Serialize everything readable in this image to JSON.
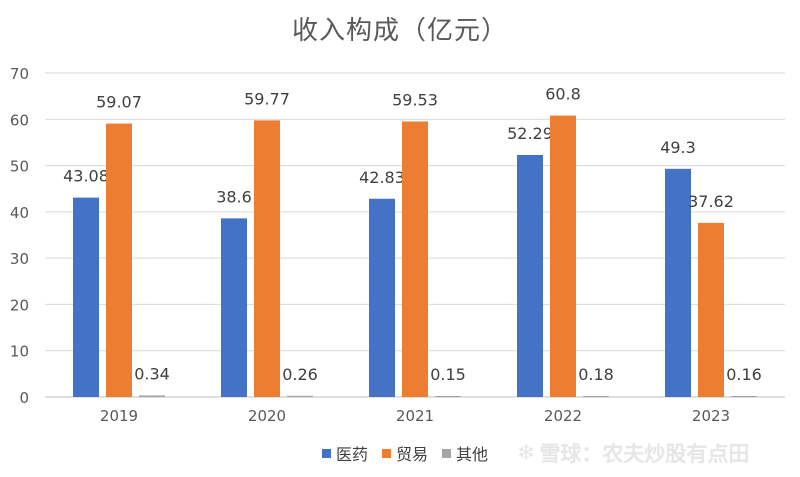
{
  "chart_data": {
    "type": "bar",
    "title": "收入构成（亿元）",
    "categories": [
      "2019",
      "2020",
      "2021",
      "2022",
      "2023"
    ],
    "series": [
      {
        "name": "医药",
        "color": "#4472C4",
        "values": [
          43.08,
          38.6,
          42.83,
          52.29,
          49.3
        ]
      },
      {
        "name": "贸易",
        "color": "#ED7D31",
        "values": [
          59.07,
          59.77,
          59.53,
          60.8,
          37.62
        ]
      },
      {
        "name": "其他",
        "color": "#A5A5A5",
        "values": [
          0.34,
          0.26,
          0.15,
          0.18,
          0.16
        ]
      }
    ],
    "ylim": [
      0,
      70
    ],
    "yticks": [
      0,
      10,
      20,
      30,
      40,
      50,
      60,
      70
    ],
    "grid": true,
    "legend_position": "bottom",
    "xlabel": "",
    "ylabel": ""
  },
  "watermark": {
    "icon": "snowball-icon",
    "text": "雪球：农夫炒股有点田"
  }
}
